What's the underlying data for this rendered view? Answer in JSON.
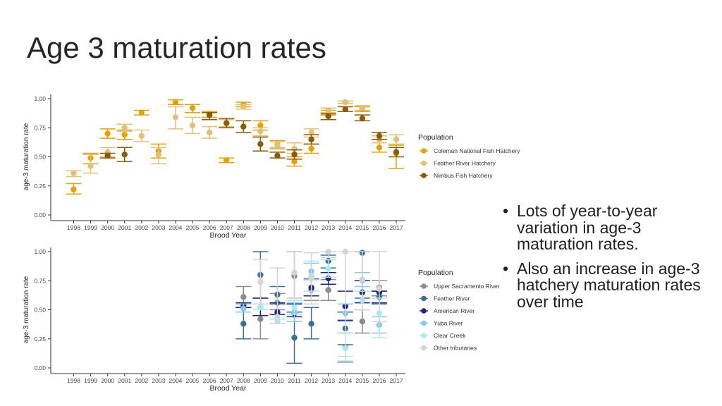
{
  "slide": {
    "title": "Age 3 maturation rates",
    "bullets": [
      "Lots of year-to-year variation in age-3 maturation rates.",
      "Also an increase in age-3 hatchery maturation rates over time"
    ]
  },
  "chart_data": [
    {
      "type": "scatter",
      "title": "",
      "xlabel": "Brood Year",
      "ylabel": "age-3 maturation rate",
      "x": [
        1998,
        1999,
        2000,
        2001,
        2002,
        2003,
        2004,
        2005,
        2006,
        2007,
        2008,
        2009,
        2010,
        2011,
        2012,
        2013,
        2014,
        2015,
        2016,
        2017
      ],
      "yticks": [
        "0.00",
        "0.25",
        "0.50",
        "0.75",
        "1.00"
      ],
      "ylim": [
        0,
        1.0
      ],
      "grid": false,
      "legend": {
        "title": "Population",
        "position": "right"
      },
      "series": [
        {
          "name": "Coleman National Fish Hatchery",
          "color": "#E3A20A",
          "points": [
            {
              "x": 1998,
              "y": 0.22,
              "lo": 0.18,
              "hi": 0.27
            },
            {
              "x": 1999,
              "y": 0.49,
              "lo": 0.44,
              "hi": 0.53
            },
            {
              "x": 2000,
              "y": 0.7,
              "lo": 0.66,
              "hi": 0.74
            },
            {
              "x": 2001,
              "y": 0.69,
              "lo": 0.65,
              "hi": 0.73
            },
            {
              "x": 2002,
              "y": 0.88,
              "lo": 0.86,
              "hi": 0.9
            },
            {
              "x": 2003,
              "y": 0.55,
              "lo": 0.49,
              "hi": 0.61
            },
            {
              "x": 2004,
              "y": 0.97,
              "lo": 0.95,
              "hi": 0.99
            },
            {
              "x": 2005,
              "y": 0.92,
              "lo": 0.88,
              "hi": 0.95
            },
            {
              "x": 2006,
              "y": 0.87,
              "lo": 0.84,
              "hi": 0.89
            },
            {
              "x": 2007,
              "y": 0.47,
              "lo": 0.45,
              "hi": 0.49
            },
            {
              "x": 2008,
              "y": 0.95,
              "lo": 0.93,
              "hi": 0.97
            },
            {
              "x": 2009,
              "y": 0.77,
              "lo": 0.73,
              "hi": 0.81
            },
            {
              "x": 2010,
              "y": 0.61,
              "lo": 0.57,
              "hi": 0.64
            },
            {
              "x": 2011,
              "y": 0.46,
              "lo": 0.42,
              "hi": 0.5
            },
            {
              "x": 2012,
              "y": 0.57,
              "lo": 0.53,
              "hi": 0.61
            },
            {
              "x": 2013,
              "y": 0.88,
              "lo": 0.86,
              "hi": 0.9
            },
            {
              "x": 2014,
              "y": 0.97,
              "lo": 0.96,
              "hi": 0.98
            },
            {
              "x": 2015,
              "y": 0.91,
              "lo": 0.89,
              "hi": 0.93
            },
            {
              "x": 2016,
              "y": 0.58,
              "lo": 0.54,
              "hi": 0.62
            },
            {
              "x": 2017,
              "y": 0.53,
              "lo": 0.4,
              "hi": 0.6
            }
          ]
        },
        {
          "name": "Feather River Hatchery",
          "color": "#E2C07A",
          "points": [
            {
              "x": 1998,
              "y": 0.36,
              "lo": 0.33,
              "hi": 0.38
            },
            {
              "x": 1999,
              "y": 0.42,
              "lo": 0.36,
              "hi": 0.52
            },
            {
              "x": 2000,
              "y": 0.54,
              "lo": 0.5,
              "hi": 0.58
            },
            {
              "x": 2001,
              "y": 0.75,
              "lo": 0.72,
              "hi": 0.78
            },
            {
              "x": 2002,
              "y": 0.68,
              "lo": 0.63,
              "hi": 0.73
            },
            {
              "x": 2003,
              "y": 0.52,
              "lo": 0.44,
              "hi": 0.58
            },
            {
              "x": 2004,
              "y": 0.84,
              "lo": 0.74,
              "hi": 0.93
            },
            {
              "x": 2005,
              "y": 0.77,
              "lo": 0.7,
              "hi": 0.84
            },
            {
              "x": 2006,
              "y": 0.71,
              "lo": 0.66,
              "hi": 0.76
            },
            {
              "x": 2007,
              "y": 0.79,
              "lo": 0.76,
              "hi": 0.82
            },
            {
              "x": 2008,
              "y": 0.93,
              "lo": 0.91,
              "hi": 0.95
            },
            {
              "x": 2009,
              "y": 0.72,
              "lo": 0.68,
              "hi": 0.75
            },
            {
              "x": 2010,
              "y": 0.6,
              "lo": 0.58,
              "hi": 0.63
            },
            {
              "x": 2011,
              "y": 0.57,
              "lo": 0.53,
              "hi": 0.62
            },
            {
              "x": 2012,
              "y": 0.71,
              "lo": 0.67,
              "hi": 0.74
            },
            {
              "x": 2013,
              "y": 0.9,
              "lo": 0.88,
              "hi": 0.92
            },
            {
              "x": 2014,
              "y": 0.97,
              "lo": 0.96,
              "hi": 0.98
            },
            {
              "x": 2015,
              "y": 0.92,
              "lo": 0.9,
              "hi": 0.94
            },
            {
              "x": 2016,
              "y": 0.65,
              "lo": 0.62,
              "hi": 0.68
            },
            {
              "x": 2017,
              "y": 0.65,
              "lo": 0.61,
              "hi": 0.69
            }
          ]
        },
        {
          "name": "Nimbus Fish Hatchery",
          "color": "#8A5A05",
          "points": [
            {
              "x": 2000,
              "y": 0.51,
              "lo": 0.49,
              "hi": 0.53
            },
            {
              "x": 2001,
              "y": 0.52,
              "lo": 0.46,
              "hi": 0.58
            },
            {
              "x": 2006,
              "y": 0.86,
              "lo": 0.82,
              "hi": 0.88
            },
            {
              "x": 2007,
              "y": 0.79,
              "lo": 0.75,
              "hi": 0.83
            },
            {
              "x": 2008,
              "y": 0.76,
              "lo": 0.71,
              "hi": 0.81
            },
            {
              "x": 2009,
              "y": 0.61,
              "lo": 0.55,
              "hi": 0.67
            },
            {
              "x": 2010,
              "y": 0.51,
              "lo": 0.49,
              "hi": 0.54
            },
            {
              "x": 2011,
              "y": 0.52,
              "lo": 0.48,
              "hi": 0.56
            },
            {
              "x": 2012,
              "y": 0.65,
              "lo": 0.61,
              "hi": 0.69
            },
            {
              "x": 2013,
              "y": 0.85,
              "lo": 0.82,
              "hi": 0.87
            },
            {
              "x": 2014,
              "y": 0.91,
              "lo": 0.89,
              "hi": 0.93
            },
            {
              "x": 2015,
              "y": 0.83,
              "lo": 0.81,
              "hi": 0.86
            },
            {
              "x": 2016,
              "y": 0.68,
              "lo": 0.65,
              "hi": 0.71
            },
            {
              "x": 2017,
              "y": 0.54,
              "lo": 0.5,
              "hi": 0.58
            }
          ]
        }
      ]
    },
    {
      "type": "scatter",
      "title": "",
      "xlabel": "Brood Year",
      "ylabel": "age-3 maturation rate",
      "x": [
        1998,
        1999,
        2000,
        2001,
        2002,
        2003,
        2004,
        2005,
        2006,
        2007,
        2008,
        2009,
        2010,
        2011,
        2012,
        2013,
        2014,
        2015,
        2016,
        2017
      ],
      "yticks": [
        "0.00",
        "0.25",
        "0.50",
        "0.75",
        "1.00"
      ],
      "ylim": [
        0,
        1.0
      ],
      "grid": false,
      "legend": {
        "title": "Population",
        "position": "right"
      },
      "series": [
        {
          "name": "Upper Sacramento River",
          "color": "#8C8C8C",
          "points": [
            {
              "x": 2008,
              "y": 0.61,
              "lo": 0.52,
              "hi": 0.7
            },
            {
              "x": 2009,
              "y": 0.42,
              "lo": 0.25,
              "hi": 0.6
            },
            {
              "x": 2010,
              "y": 0.56,
              "lo": 0.5,
              "hi": 0.64
            },
            {
              "x": 2011,
              "y": 0.79,
              "lo": 0.6,
              "hi": 1.0
            },
            {
              "x": 2012,
              "y": 0.67,
              "lo": 0.58,
              "hi": 0.77
            },
            {
              "x": 2013,
              "y": 0.67,
              "lo": 0.58,
              "hi": 0.76
            },
            {
              "x": 2014,
              "y": 0.18,
              "lo": 0.05,
              "hi": 0.3
            },
            {
              "x": 2015,
              "y": 0.4,
              "lo": 0.3,
              "hi": 0.5
            },
            {
              "x": 2016,
              "y": 0.69,
              "lo": 0.62,
              "hi": 0.75
            }
          ]
        },
        {
          "name": "Feather River",
          "color": "#3E6F8E",
          "points": [
            {
              "x": 2008,
              "y": 0.38,
              "lo": 0.25,
              "hi": 0.52
            },
            {
              "x": 2009,
              "y": 0.8,
              "lo": 0.55,
              "hi": 1.0
            },
            {
              "x": 2010,
              "y": 0.63,
              "lo": 0.55,
              "hi": 0.7
            },
            {
              "x": 2011,
              "y": 0.26,
              "lo": 0.04,
              "hi": 0.48
            },
            {
              "x": 2012,
              "y": 0.38,
              "lo": 0.25,
              "hi": 0.52
            },
            {
              "x": 2013,
              "y": 0.92,
              "lo": 0.86,
              "hi": 0.97
            },
            {
              "x": 2014,
              "y": 0.34,
              "lo": 0.2,
              "hi": 0.48
            },
            {
              "x": 2015,
              "y": 0.99,
              "lo": 0.6,
              "hi": 1.0
            },
            {
              "x": 2016,
              "y": 0.61,
              "lo": 0.55,
              "hi": 0.66
            }
          ]
        },
        {
          "name": "American River",
          "color": "#23237A",
          "points": [
            {
              "x": 2008,
              "y": 0.54,
              "lo": 0.52,
              "hi": 0.56
            },
            {
              "x": 2009,
              "y": 0.52,
              "lo": 0.45,
              "hi": 0.6
            },
            {
              "x": 2010,
              "y": 0.48,
              "lo": 0.46,
              "hi": 0.56
            },
            {
              "x": 2011,
              "y": 0.47,
              "lo": 0.44,
              "hi": 0.55
            },
            {
              "x": 2012,
              "y": 0.69,
              "lo": 0.62,
              "hi": 0.76
            },
            {
              "x": 2013,
              "y": 0.77,
              "lo": 0.72,
              "hi": 0.82
            },
            {
              "x": 2014,
              "y": 0.53,
              "lo": 0.41,
              "hi": 0.66
            },
            {
              "x": 2015,
              "y": 0.65,
              "lo": 0.56,
              "hi": 0.75
            },
            {
              "x": 2016,
              "y": 0.65,
              "lo": 0.56,
              "hi": 0.66
            }
          ]
        },
        {
          "name": "Yuba River",
          "color": "#8CC4EC",
          "points": [
            {
              "x": 2008,
              "y": 0.51,
              "lo": 0.48,
              "hi": 0.55
            },
            {
              "x": 2011,
              "y": 0.48,
              "lo": 0.4,
              "hi": 0.56
            },
            {
              "x": 2012,
              "y": 0.83,
              "lo": 0.76,
              "hi": 0.9
            },
            {
              "x": 2014,
              "y": 0.47,
              "lo": 0.4,
              "hi": 0.55
            },
            {
              "x": 2015,
              "y": 0.75,
              "lo": 0.7,
              "hi": 0.82
            },
            {
              "x": 2016,
              "y": 0.37,
              "lo": 0.3,
              "hi": 0.44
            }
          ]
        },
        {
          "name": "Clear Creek",
          "color": "#A6EAF6",
          "points": [
            {
              "x": 2009,
              "y": 0.52,
              "lo": 0.5,
              "hi": 0.55
            },
            {
              "x": 2010,
              "y": 0.4,
              "lo": 0.38,
              "hi": 0.42
            },
            {
              "x": 2011,
              "y": 0.52,
              "lo": 0.46,
              "hi": 0.58
            },
            {
              "x": 2012,
              "y": 0.79,
              "lo": 0.66,
              "hi": 0.92
            },
            {
              "x": 2013,
              "y": 0.85,
              "lo": 0.78,
              "hi": 0.93
            },
            {
              "x": 2014,
              "y": 0.17,
              "lo": 0.06,
              "hi": 0.3
            },
            {
              "x": 2015,
              "y": 0.58,
              "lo": 0.5,
              "hi": 0.66
            },
            {
              "x": 2016,
              "y": 0.47,
              "lo": 0.26,
              "hi": 0.6
            }
          ]
        },
        {
          "name": "Other tributaries",
          "color": "#D4D4D4",
          "points": [
            {
              "x": 2009,
              "y": 0.74,
              "lo": 0.55,
              "hi": 0.93
            },
            {
              "x": 2010,
              "y": 0.44,
              "lo": 0.38,
              "hi": 0.86
            },
            {
              "x": 2011,
              "y": 0.82,
              "lo": 0.6,
              "hi": 1.0
            },
            {
              "x": 2012,
              "y": 0.77,
              "lo": 0.55,
              "hi": 0.99
            },
            {
              "x": 2013,
              "y": 1.0,
              "lo": 0.95,
              "hi": 1.0
            },
            {
              "x": 2014,
              "y": 1.0,
              "lo": 0.1,
              "hi": 1.0
            },
            {
              "x": 2015,
              "y": 0.76,
              "lo": 0.5,
              "hi": 1.0
            },
            {
              "x": 2016,
              "y": 0.68,
              "lo": 0.4,
              "hi": 1.0
            }
          ]
        }
      ]
    }
  ]
}
